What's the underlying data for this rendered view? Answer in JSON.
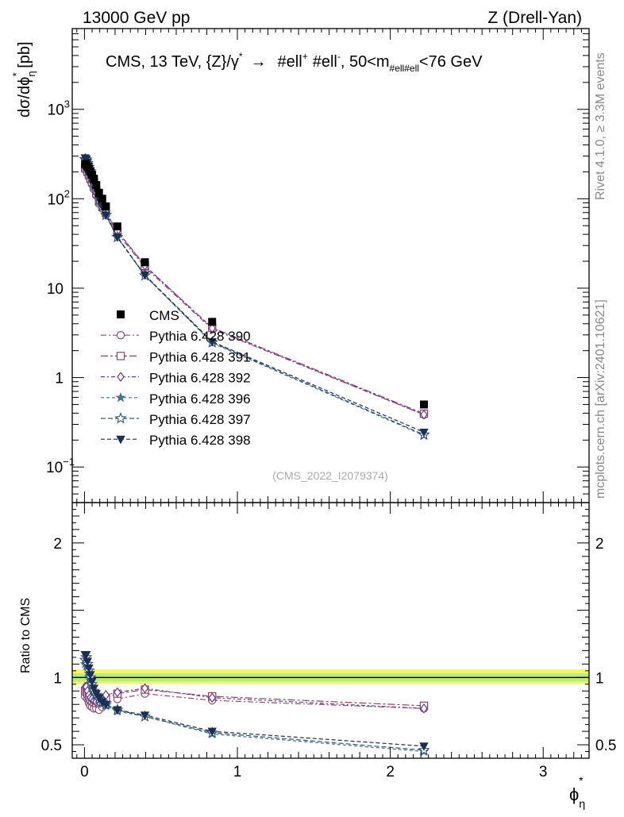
{
  "header": {
    "left": "13000 GeV pp",
    "right": "Z (Drell-Yan)"
  },
  "side_labels": {
    "rivet": "Rivet 4.1.0, ≥ 3.3M events",
    "mcplots": "mcplots.cern.ch [arXiv:2401.10621]"
  },
  "chart_data": {
    "type": "scatter",
    "title_parts": {
      "main": "CMS, 13 TeV, {Z}/γ",
      "sup1": "*",
      "arrow": "→",
      "ell1": "#ell",
      "sup2": "+",
      "ell2": "#ell",
      "sup3": "-",
      "mass_pre": ", 50<m",
      "mass_sub": "#ell#ell",
      "mass_post": "<76 GeV"
    },
    "watermark": "(CMS_2022_I2079374)",
    "ylabel_main": {
      "pre": "dσ/dϕ",
      "sup": "*",
      "sub": "η",
      "post": " [pb]"
    },
    "ylabel_ratio": "Ratio to CMS",
    "xlabel": {
      "sym": "ϕ",
      "sup": "*",
      "sub": "η"
    },
    "xlim": [
      -0.08,
      3.3
    ],
    "ylim_main": [
      0.04,
      8000
    ],
    "ylim_ratio": [
      0.4,
      2.3
    ],
    "x_ticks": [
      {
        "v": 0,
        "label": "0"
      },
      {
        "v": 1,
        "label": "1"
      },
      {
        "v": 2,
        "label": "2"
      },
      {
        "v": 3,
        "label": "3"
      }
    ],
    "y_ticks_main": [
      {
        "v": 0.1,
        "base": "10",
        "exp": "−1"
      },
      {
        "v": 1,
        "base": "1",
        "exp": ""
      },
      {
        "v": 10,
        "base": "10",
        "exp": ""
      },
      {
        "v": 100,
        "base": "10",
        "exp": "2"
      },
      {
        "v": 1000,
        "base": "10",
        "exp": "3"
      }
    ],
    "y_ticks_ratio": [
      {
        "v": 0.5,
        "label": "0.5"
      },
      {
        "v": 1,
        "label": "1"
      },
      {
        "v": 2,
        "label": "2"
      }
    ],
    "x": [
      0.004,
      0.012,
      0.02,
      0.029,
      0.038,
      0.049,
      0.062,
      0.077,
      0.095,
      0.116,
      0.14,
      0.215,
      0.395,
      0.835,
      2.22
    ],
    "cms": [
      245,
      238,
      228,
      216,
      202,
      186,
      166,
      142,
      116,
      100,
      82,
      49,
      19.5,
      4.2,
      0.5
    ],
    "band_inner": [
      0.97,
      1.03
    ],
    "band_outer": [
      0.95,
      1.06
    ],
    "series": [
      {
        "name": "Pythia 6.428 390",
        "color": "#8c4d74",
        "marker": "circle-open",
        "dash": "7,3,2,3",
        "ratio": [
          0.86,
          0.88,
          0.84,
          0.81,
          0.79,
          0.78,
          0.77,
          0.77,
          0.76,
          0.78,
          0.81,
          0.84,
          0.88,
          0.83,
          0.77
        ]
      },
      {
        "name": "Pythia 6.428 391",
        "color": "#8a4664",
        "marker": "square-open",
        "dash": "9,3,3,3",
        "ratio": [
          0.9,
          0.91,
          0.88,
          0.86,
          0.84,
          0.83,
          0.82,
          0.81,
          0.81,
          0.82,
          0.85,
          0.88,
          0.91,
          0.86,
          0.79
        ]
      },
      {
        "name": "Pythia 6.428 392",
        "color": "#6b3a94",
        "marker": "diamond-open",
        "dash": "5,3,2,3",
        "ratio": [
          0.93,
          0.93,
          0.9,
          0.87,
          0.85,
          0.84,
          0.83,
          0.82,
          0.82,
          0.84,
          0.87,
          0.89,
          0.92,
          0.85,
          0.77
        ]
      },
      {
        "name": "Pythia 6.428 396",
        "color": "#46728a",
        "marker": "star-filled",
        "dash": "4,3",
        "ratio": [
          1.1,
          1.12,
          1.08,
          1.03,
          0.98,
          0.93,
          0.89,
          0.86,
          0.83,
          0.81,
          0.79,
          0.75,
          0.71,
          0.58,
          0.45
        ]
      },
      {
        "name": "Pythia 6.428 397",
        "color": "#36566e",
        "marker": "star-open",
        "dash": "6,3",
        "ratio": [
          1.13,
          1.15,
          1.1,
          1.05,
          1.0,
          0.95,
          0.9,
          0.87,
          0.84,
          0.82,
          0.8,
          0.76,
          0.71,
          0.59,
          0.46
        ]
      },
      {
        "name": "Pythia 6.428 398",
        "color": "#1c2e52",
        "marker": "triangle-down-filled",
        "dash": "5,3",
        "ratio": [
          1.17,
          1.17,
          1.12,
          1.07,
          1.02,
          0.97,
          0.92,
          0.88,
          0.85,
          0.82,
          0.8,
          0.76,
          0.72,
          0.6,
          0.49
        ]
      }
    ],
    "legend_data_label": "CMS"
  }
}
